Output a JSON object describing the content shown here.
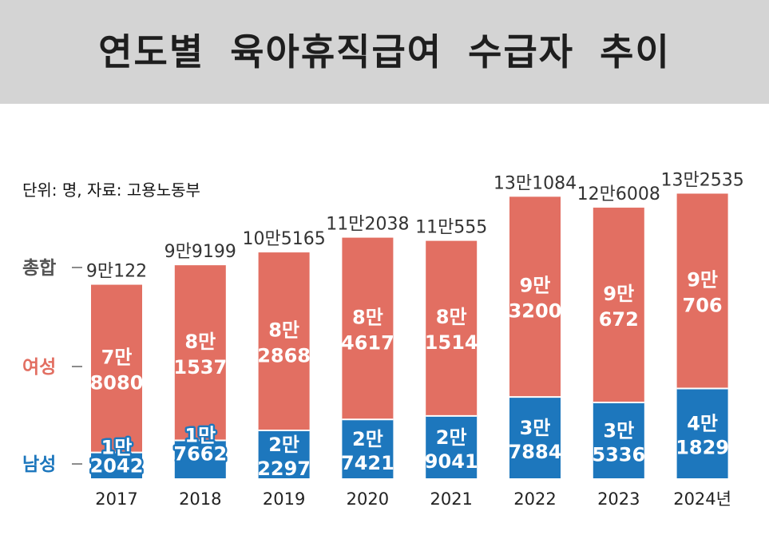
{
  "title": "연도별 육아휴직급여 수급자 추이",
  "unit_note": "단위: 명, 자료: 고용노동부",
  "colors": {
    "female": "#e26f62",
    "male": "#1d77bd",
    "total_legend": "#555555",
    "title_band": "#d4d4d4"
  },
  "legend": {
    "total": "총합",
    "female": "여성",
    "male": "남성"
  },
  "chart_data": {
    "type": "bar",
    "stacked": true,
    "categories": [
      "2017",
      "2018",
      "2019",
      "2020",
      "2021",
      "2022",
      "2023",
      "2024년"
    ],
    "series": [
      {
        "name": "남성",
        "values": [
          12042,
          17662,
          22297,
          27421,
          29041,
          37884,
          35336,
          41829
        ],
        "labels": [
          [
            "1만",
            "2042"
          ],
          [
            "1만",
            "7662"
          ],
          [
            "2만",
            "2297"
          ],
          [
            "2만",
            "7421"
          ],
          [
            "2만",
            "9041"
          ],
          [
            "3만",
            "7884"
          ],
          [
            "3만",
            "5336"
          ],
          [
            "4만",
            "1829"
          ]
        ]
      },
      {
        "name": "여성",
        "values": [
          78080,
          81537,
          82868,
          84617,
          81514,
          93200,
          90672,
          90706
        ],
        "labels": [
          [
            "7만",
            "8080"
          ],
          [
            "8만",
            "1537"
          ],
          [
            "8만",
            "2868"
          ],
          [
            "8만",
            "4617"
          ],
          [
            "8만",
            "1514"
          ],
          [
            "9만",
            "3200"
          ],
          [
            "9만",
            "672"
          ],
          [
            "9만",
            "706"
          ]
        ]
      }
    ],
    "totals": [
      90122,
      99199,
      105165,
      112038,
      110555,
      131084,
      126008,
      132535
    ],
    "total_labels": [
      "9만122",
      "9만9199",
      "10만5165",
      "11만2038",
      "11만555",
      "13만1084",
      "12만6008",
      "13만2535"
    ],
    "ylim": [
      0,
      140000
    ],
    "grid": false,
    "legend_position": "left"
  }
}
